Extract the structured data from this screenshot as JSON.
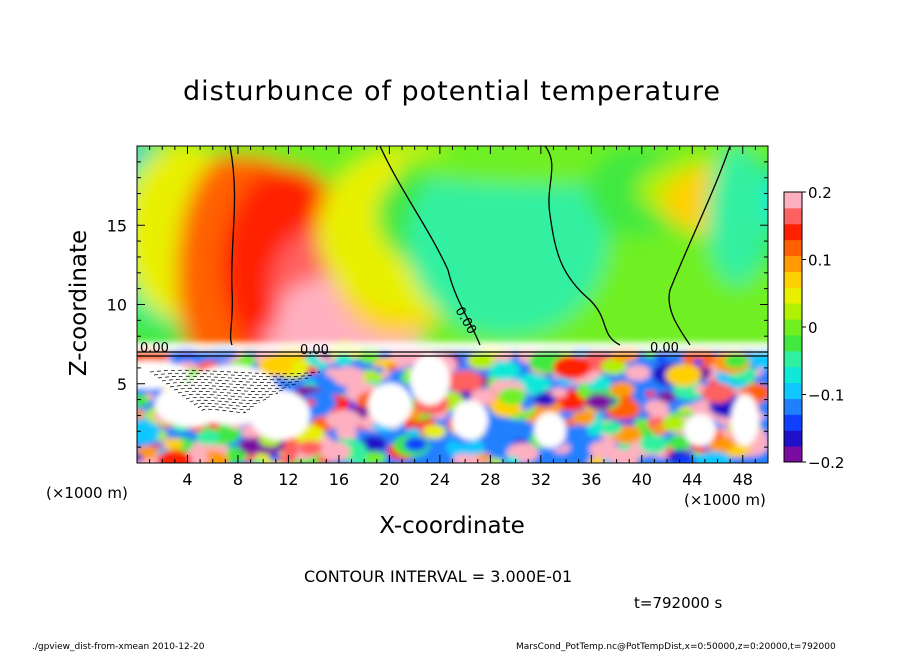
{
  "chart_data": {
    "type": "heatmap",
    "title": "disturbunce of potential temperature",
    "xlabel": "X-coordinate",
    "ylabel": "Z-coordinate",
    "x_unit_label": "(×1000 m)",
    "xlim": [
      0,
      50
    ],
    "ylim": [
      0,
      20
    ],
    "x_ticks": [
      4,
      8,
      12,
      16,
      20,
      24,
      28,
      32,
      36,
      40,
      44,
      48
    ],
    "y_ticks": [
      5,
      10,
      15
    ],
    "colorbar": {
      "range": [
        -0.2,
        0.2
      ],
      "ticks": [
        "0.2",
        "0.1",
        "0",
        "−0.1",
        "−0.2"
      ],
      "colors": [
        "#7a0da0",
        "#2010c8",
        "#1040ff",
        "#2080ff",
        "#10c8ff",
        "#10e8d8",
        "#30f0a0",
        "#40e840",
        "#70f020",
        "#b0f000",
        "#e8f000",
        "#ffd000",
        "#ff9a00",
        "#ff6000",
        "#ff2000",
        "#ff6060",
        "#ffb0c0"
      ]
    },
    "contour_labels": [
      "0.00",
      "0.00",
      "0.00",
      "0.00"
    ],
    "contour_interval_text": "CONTOUR INTERVAL = 3.000E-01",
    "time_text": "t=792000 s",
    "grid": false
  },
  "footer": {
    "left": "./gpview_dist-from-xmean  2010-12-20",
    "right": "MarsCond_PotTemp.nc@PotTempDist,x=0:50000,z=0:20000,t=792000"
  },
  "colors": {
    "axis": "#000000",
    "background": "#ffffff"
  }
}
